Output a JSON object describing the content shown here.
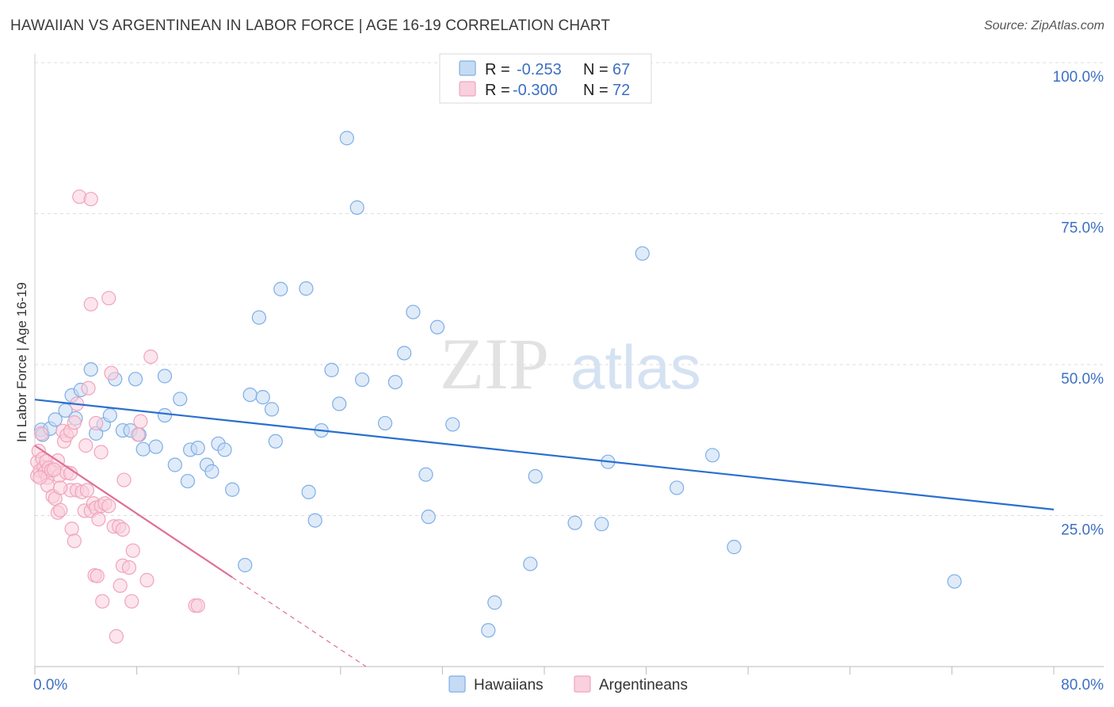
{
  "chart_data": {
    "type": "scatter",
    "title": "HAWAIIAN VS ARGENTINEAN IN LABOR FORCE | AGE 16-19 CORRELATION CHART",
    "source": "Source: ZipAtlas.com",
    "ylabel": "In Labor Force | Age 16-19",
    "xlim": [
      0,
      80
    ],
    "ylim": [
      0,
      100
    ],
    "x_tick_labels": [
      "0.0%",
      "80.0%"
    ],
    "y_ticks": [
      25,
      50,
      75,
      100
    ],
    "y_tick_labels": [
      "25.0%",
      "50.0%",
      "75.0%",
      "100.0%"
    ],
    "watermark": {
      "part1": "ZIP",
      "part2": "atlas"
    },
    "legend": {
      "r_label": "R =",
      "n_label": "N =",
      "entries": [
        {
          "r": "-0.253",
          "n": "67"
        },
        {
          "r": "-0.300",
          "n": "72"
        }
      ]
    },
    "series": [
      {
        "name": "Hawaiians",
        "color": "#7eaee6",
        "fill": "#c5dbf4",
        "line_color": "#2a6fcf",
        "trend": {
          "x0": 0,
          "y0": 44.2,
          "x1": 80,
          "y1": 26.0,
          "solid_to": 80
        },
        "points": [
          [
            0.5,
            39.2
          ],
          [
            0.6,
            38.4
          ],
          [
            1.2,
            39.4
          ],
          [
            1.6,
            40.9
          ],
          [
            2.4,
            42.4
          ],
          [
            2.9,
            44.9
          ],
          [
            3.2,
            41.1
          ],
          [
            3.6,
            45.8
          ],
          [
            4.4,
            49.2
          ],
          [
            4.8,
            38.6
          ],
          [
            5.4,
            40.1
          ],
          [
            5.9,
            41.6
          ],
          [
            6.3,
            47.6
          ],
          [
            6.9,
            39.1
          ],
          [
            7.5,
            39.1
          ],
          [
            7.9,
            47.6
          ],
          [
            8.2,
            38.4
          ],
          [
            8.5,
            36.0
          ],
          [
            9.5,
            36.4
          ],
          [
            10.2,
            48.1
          ],
          [
            10.2,
            41.6
          ],
          [
            11.0,
            33.4
          ],
          [
            11.4,
            44.3
          ],
          [
            12.0,
            30.7
          ],
          [
            12.2,
            35.9
          ],
          [
            12.8,
            36.2
          ],
          [
            13.5,
            33.4
          ],
          [
            13.9,
            32.3
          ],
          [
            14.4,
            36.9
          ],
          [
            14.9,
            35.9
          ],
          [
            15.5,
            29.3
          ],
          [
            16.5,
            16.8
          ],
          [
            16.9,
            45.0
          ],
          [
            17.6,
            57.8
          ],
          [
            17.9,
            44.6
          ],
          [
            18.6,
            42.6
          ],
          [
            18.9,
            37.3
          ],
          [
            19.3,
            62.5
          ],
          [
            21.3,
            62.6
          ],
          [
            21.5,
            28.9
          ],
          [
            22.0,
            24.2
          ],
          [
            22.5,
            39.1
          ],
          [
            23.3,
            49.1
          ],
          [
            23.9,
            43.5
          ],
          [
            24.5,
            87.5
          ],
          [
            25.3,
            76.0
          ],
          [
            25.7,
            47.5
          ],
          [
            27.5,
            40.3
          ],
          [
            28.3,
            47.1
          ],
          [
            29.0,
            51.9
          ],
          [
            29.7,
            58.7
          ],
          [
            30.7,
            31.8
          ],
          [
            30.9,
            24.8
          ],
          [
            31.6,
            56.2
          ],
          [
            32.8,
            40.1
          ],
          [
            35.6,
            6.0
          ],
          [
            36.1,
            10.6
          ],
          [
            38.9,
            17.0
          ],
          [
            39.3,
            31.5
          ],
          [
            42.4,
            23.8
          ],
          [
            44.5,
            23.6
          ],
          [
            45.0,
            33.9
          ],
          [
            47.7,
            68.4
          ],
          [
            50.4,
            29.6
          ],
          [
            53.2,
            35.0
          ],
          [
            54.9,
            19.8
          ],
          [
            72.2,
            14.1
          ]
        ]
      },
      {
        "name": "Argentineans",
        "color": "#f0a4bd",
        "fill": "#f9d0dd",
        "line_color": "#e06e96",
        "trend": {
          "x0": 0,
          "y0": 36.6,
          "x1": 26.0,
          "y1": 0.0,
          "solid_to": 15.5
        },
        "points": [
          [
            0.2,
            31.6
          ],
          [
            0.2,
            33.9
          ],
          [
            0.3,
            35.7
          ],
          [
            0.4,
            32.4
          ],
          [
            0.5,
            38.6
          ],
          [
            0.6,
            34.4
          ],
          [
            0.7,
            33.0
          ],
          [
            0.8,
            32.2
          ],
          [
            0.9,
            34.0
          ],
          [
            1.0,
            31.3
          ],
          [
            1.0,
            30.0
          ],
          [
            1.1,
            32.9
          ],
          [
            1.3,
            32.5
          ],
          [
            1.4,
            28.2
          ],
          [
            1.6,
            27.8
          ],
          [
            1.8,
            25.5
          ],
          [
            1.8,
            34.1
          ],
          [
            1.9,
            31.6
          ],
          [
            2.0,
            25.9
          ],
          [
            2.2,
            39.0
          ],
          [
            2.3,
            37.3
          ],
          [
            2.5,
            38.3
          ],
          [
            2.5,
            32.1
          ],
          [
            2.8,
            32.0
          ],
          [
            2.8,
            29.2
          ],
          [
            2.8,
            39.0
          ],
          [
            2.9,
            22.8
          ],
          [
            3.1,
            40.4
          ],
          [
            3.1,
            20.8
          ],
          [
            3.3,
            43.5
          ],
          [
            3.3,
            29.2
          ],
          [
            3.5,
            77.8
          ],
          [
            3.7,
            28.9
          ],
          [
            3.9,
            25.8
          ],
          [
            4.0,
            36.6
          ],
          [
            4.1,
            29.2
          ],
          [
            4.2,
            46.1
          ],
          [
            4.4,
            77.4
          ],
          [
            4.4,
            25.8
          ],
          [
            4.4,
            60.0
          ],
          [
            4.6,
            27.0
          ],
          [
            4.7,
            15.1
          ],
          [
            4.8,
            26.3
          ],
          [
            4.8,
            40.3
          ],
          [
            4.9,
            15.0
          ],
          [
            5.0,
            24.4
          ],
          [
            5.2,
            35.5
          ],
          [
            5.2,
            26.6
          ],
          [
            5.3,
            10.8
          ],
          [
            5.5,
            27.0
          ],
          [
            5.8,
            61.0
          ],
          [
            5.8,
            26.6
          ],
          [
            6.0,
            48.6
          ],
          [
            6.2,
            23.2
          ],
          [
            6.4,
            5.0
          ],
          [
            6.6,
            23.2
          ],
          [
            6.7,
            13.4
          ],
          [
            6.9,
            22.7
          ],
          [
            6.9,
            16.7
          ],
          [
            7.0,
            30.9
          ],
          [
            7.4,
            16.4
          ],
          [
            7.6,
            10.8
          ],
          [
            7.7,
            19.2
          ],
          [
            8.1,
            38.4
          ],
          [
            8.3,
            40.6
          ],
          [
            8.8,
            14.3
          ],
          [
            9.1,
            51.3
          ],
          [
            12.6,
            10.1
          ],
          [
            12.8,
            10.1
          ],
          [
            0.4,
            31.3
          ],
          [
            1.5,
            32.6
          ],
          [
            2.0,
            29.6
          ]
        ]
      }
    ]
  }
}
